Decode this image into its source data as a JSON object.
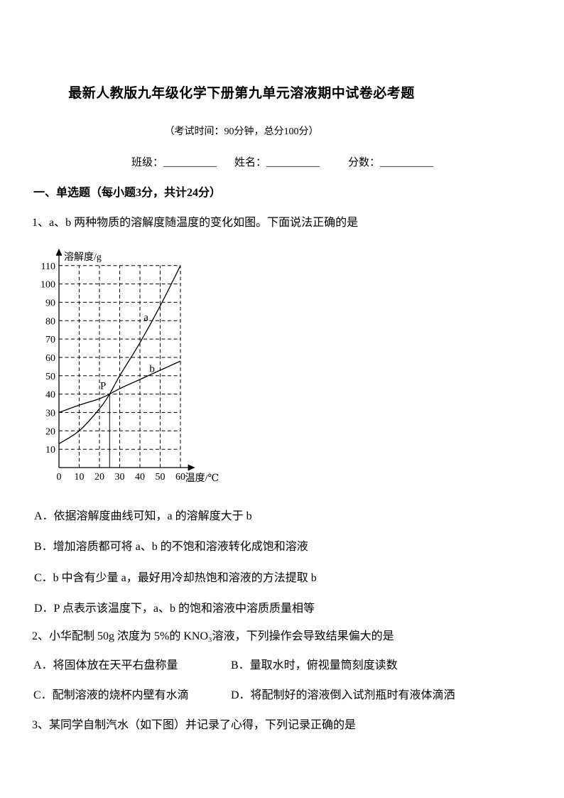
{
  "header": {
    "title": "最新人教版九年级化学下册第九单元溶液期中试卷必考题",
    "exam_info": "（考试时间：90分钟，总分100分）",
    "fields": [
      "班级：__________",
      "姓名：__________",
      "分数：__________"
    ]
  },
  "section": {
    "heading": "一、单选题（每小题3分，共计24分）"
  },
  "questions": {
    "q1": {
      "stem": "1、a、b 两种物质的溶解度随温度的变化如图。下面说法正确的是",
      "options": [
        "A．依据溶解度曲线可知，a 的溶解度大于 b",
        "B．增加溶质都可将 a、b 的不饱和溶液转化成饱和溶液",
        "C．b 中含有少量 a，最好用冷却热饱和溶液的方法提取 b",
        "D．P 点表示该温度下，a、b 的饱和溶液中溶质质量相等"
      ]
    },
    "q2": {
      "stem": "2、小华配制 50g 浓度为 5%的 KNO₃溶液，下列操作会导致结果偏大的是",
      "options": [
        "A．将固体放在天平右盘称量",
        "B．量取水时，俯视量筒刻度读数",
        "C．配制溶液的烧杯内壁有水滴",
        "D．将配制好的溶液倒入试剂瓶时有液体滴洒"
      ]
    },
    "q3": {
      "stem": "3、某同学自制汽水（如下图）并记录了心得，下列记录正确的是"
    }
  },
  "chart_data": {
    "type": "line",
    "title": "",
    "xlabel": "温度/℃",
    "ylabel": "溶解度/g",
    "x_ticks": [
      0,
      10,
      20,
      30,
      40,
      50,
      60
    ],
    "y_ticks": [
      10,
      20,
      30,
      40,
      50,
      60,
      70,
      80,
      90,
      100,
      110
    ],
    "xlim": [
      0,
      63
    ],
    "ylim": [
      0,
      115
    ],
    "grid": "dashed",
    "legend_position": "inline-labels",
    "series": [
      {
        "name": "a",
        "points": [
          [
            0,
            13
          ],
          [
            10,
            20
          ],
          [
            20,
            32
          ],
          [
            25,
            40
          ],
          [
            30,
            50
          ],
          [
            40,
            68
          ],
          [
            50,
            88
          ],
          [
            60,
            110
          ]
        ],
        "label_at": [
          43,
          82
        ]
      },
      {
        "name": "b",
        "points": [
          [
            0,
            30
          ],
          [
            10,
            34
          ],
          [
            20,
            37.5
          ],
          [
            25,
            40
          ],
          [
            30,
            43
          ],
          [
            40,
            48
          ],
          [
            50,
            53
          ],
          [
            60,
            58
          ]
        ],
        "label_at": [
          46,
          54
        ]
      }
    ],
    "intersection": {
      "label": "P",
      "x": 25,
      "y": 40,
      "drop_line_to_axis": true
    }
  },
  "colors": {
    "ink": "#000000",
    "paper": "#ffffff"
  }
}
